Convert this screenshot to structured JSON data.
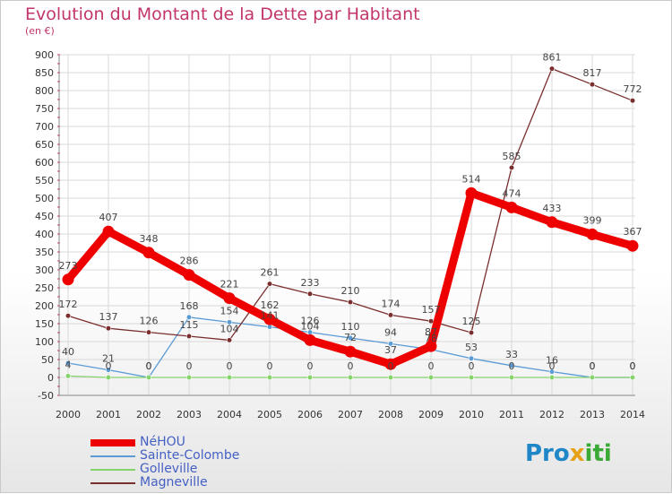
{
  "header": {
    "title": "Evolution du Montant de la Dette par Habitant",
    "subtitle": "(en €)"
  },
  "logo": {
    "part1": "Pro",
    "part2": "x",
    "part3": "iti"
  },
  "colors": {
    "title": "#c1356b",
    "axis_text": "#333333",
    "grid": "#d8d8d8",
    "tick_red": "#cc3355"
  },
  "chart_data": {
    "type": "line",
    "title": "Evolution du Montant de la Dette par Habitant",
    "subtitle": "(en €)",
    "x": [
      "2000",
      "2001",
      "2002",
      "2003",
      "2004",
      "2005",
      "2006",
      "2007",
      "2008",
      "2009",
      "2010",
      "2011",
      "2012",
      "2013",
      "2014"
    ],
    "ylim": [
      -50,
      900
    ],
    "yticks": [
      -50,
      0,
      50,
      100,
      150,
      200,
      250,
      300,
      350,
      400,
      450,
      500,
      550,
      600,
      650,
      700,
      750,
      800,
      850,
      900
    ],
    "grid": true,
    "legend_position": "bottom-left",
    "series": [
      {
        "name": "NéHOU",
        "color": "#ee0000",
        "emphasis": true,
        "values": [
          273,
          407,
          348,
          286,
          221,
          162,
          104,
          72,
          37,
          87,
          514,
          474,
          433,
          399,
          367
        ],
        "labels": [
          "273",
          "407",
          "348",
          "286",
          "221",
          "162",
          "104",
          "72",
          "37",
          "87",
          "514",
          "474",
          "433",
          "399",
          "367"
        ]
      },
      {
        "name": "Sainte-Colombe",
        "color": "#5b9bd5",
        "values": [
          40,
          21,
          0,
          168,
          154,
          141,
          126,
          110,
          94,
          78,
          53,
          33,
          16,
          0,
          0
        ],
        "labels": [
          "40",
          "21",
          "0",
          "168",
          "154",
          "141",
          "126",
          "110",
          "94",
          "78",
          "53",
          "33",
          "16",
          "0",
          "0"
        ]
      },
      {
        "name": "Golleville",
        "color": "#86d36b",
        "values": [
          4,
          0,
          0,
          0,
          0,
          0,
          0,
          0,
          0,
          0,
          0,
          0,
          0,
          0,
          0
        ],
        "labels": [
          "4",
          "0",
          "0",
          "0",
          "0",
          "0",
          "0",
          "0",
          "0",
          "0",
          "0",
          "0",
          "0",
          "0",
          "0"
        ]
      },
      {
        "name": "Magneville",
        "color": "#7a2e2e",
        "values": [
          172,
          137,
          126,
          115,
          104,
          261,
          233,
          210,
          174,
          157,
          125,
          585,
          861,
          817,
          772
        ],
        "labels": [
          "172",
          "137",
          "126",
          "115",
          "104",
          "261",
          "233",
          "210",
          "174",
          "157",
          "125",
          "585",
          "861",
          "817",
          "772"
        ]
      }
    ]
  }
}
